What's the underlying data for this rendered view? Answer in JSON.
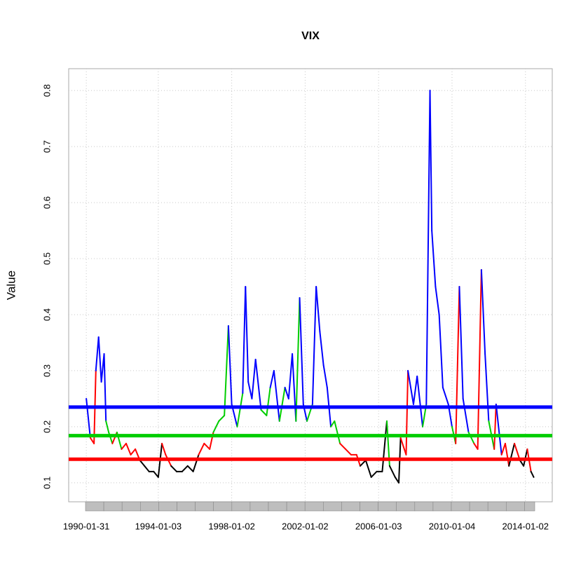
{
  "chart_data": {
    "type": "line",
    "title": "VIX",
    "ylabel": "Value",
    "xlim": [
      1989.12,
      2015.46
    ],
    "xticks": [
      {
        "value": 1990.08,
        "label": "1990-01-31"
      },
      {
        "value": 1994.0,
        "label": "1994-01-03"
      },
      {
        "value": 1998.0,
        "label": "1998-01-02"
      },
      {
        "value": 2002.0,
        "label": "2002-01-02"
      },
      {
        "value": 2006.0,
        "label": "2006-01-03"
      },
      {
        "value": 2010.0,
        "label": "2010-01-04"
      },
      {
        "value": 2014.0,
        "label": "2014-01-02"
      }
    ],
    "ylim": [
      0.066,
      0.839
    ],
    "yticks": [
      0.1,
      0.2,
      0.3,
      0.4,
      0.5,
      0.6,
      0.7,
      0.8
    ],
    "grid": true,
    "series": [
      {
        "x": [
          1990.08,
          1990.3,
          1990.5,
          1990.6,
          1990.75,
          1990.9,
          1991.05,
          1991.15,
          1991.3,
          1991.5,
          1991.75,
          1992.0,
          1992.25,
          1992.5,
          1992.75,
          1993.0,
          1993.25,
          1993.5,
          1993.75,
          1994.0,
          1994.2,
          1994.4,
          1994.7,
          1995.0,
          1995.3,
          1995.6,
          1995.9,
          1996.2,
          1996.5,
          1996.8,
          1997.0,
          1997.3,
          1997.6,
          1997.82,
          1998.0,
          1998.3,
          1998.6,
          1998.75,
          1998.9,
          1999.1,
          1999.3,
          1999.6,
          1999.9,
          2000.1,
          2000.3,
          2000.6,
          2000.9,
          2001.1,
          2001.3,
          2001.5,
          2001.7,
          2001.9,
          2002.1,
          2002.4,
          2002.6,
          2002.8,
          2003.0,
          2003.2,
          2003.4,
          2003.6,
          2003.9,
          2004.2,
          2004.5,
          2004.8,
          2005.0,
          2005.3,
          2005.6,
          2005.9,
          2006.2,
          2006.45,
          2006.6,
          2006.9,
          2007.1,
          2007.2,
          2007.5,
          2007.6,
          2007.9,
          2008.1,
          2008.4,
          2008.6,
          2008.8,
          2008.9,
          2009.1,
          2009.3,
          2009.5,
          2009.8,
          2010.0,
          2010.2,
          2010.4,
          2010.6,
          2010.9,
          2011.2,
          2011.4,
          2011.6,
          2011.8,
          2012.0,
          2012.3,
          2012.4,
          2012.7,
          2012.9,
          2013.1,
          2013.4,
          2013.7,
          2013.9,
          2014.1,
          2014.3,
          2014.45
        ],
        "values": [
          0.25,
          0.18,
          0.17,
          0.3,
          0.36,
          0.28,
          0.33,
          0.21,
          0.19,
          0.17,
          0.19,
          0.16,
          0.17,
          0.15,
          0.16,
          0.14,
          0.13,
          0.12,
          0.12,
          0.11,
          0.17,
          0.15,
          0.13,
          0.12,
          0.12,
          0.13,
          0.12,
          0.15,
          0.17,
          0.16,
          0.19,
          0.21,
          0.22,
          0.38,
          0.24,
          0.2,
          0.26,
          0.45,
          0.28,
          0.25,
          0.32,
          0.23,
          0.22,
          0.27,
          0.3,
          0.21,
          0.27,
          0.25,
          0.33,
          0.21,
          0.43,
          0.24,
          0.21,
          0.24,
          0.45,
          0.37,
          0.31,
          0.27,
          0.2,
          0.21,
          0.17,
          0.16,
          0.15,
          0.15,
          0.13,
          0.14,
          0.11,
          0.12,
          0.12,
          0.21,
          0.13,
          0.11,
          0.1,
          0.18,
          0.15,
          0.3,
          0.24,
          0.29,
          0.2,
          0.24,
          0.8,
          0.55,
          0.45,
          0.4,
          0.27,
          0.24,
          0.2,
          0.17,
          0.45,
          0.25,
          0.19,
          0.17,
          0.16,
          0.48,
          0.33,
          0.21,
          0.16,
          0.24,
          0.15,
          0.17,
          0.13,
          0.17,
          0.14,
          0.13,
          0.16,
          0.12,
          0.11
        ],
        "colors": [
          "#0000ff",
          "#ff0000",
          "#ff0000",
          "#0000ff",
          "#0000ff",
          "#0000ff",
          "#0000ff",
          "#00cd00",
          "#00cd00",
          "#ff0000",
          "#00cd00",
          "#ff0000",
          "#ff0000",
          "#ff0000",
          "#ff0000",
          "#000000",
          "#000000",
          "#000000",
          "#000000",
          "#000000",
          "#ff0000",
          "#ff0000",
          "#000000",
          "#000000",
          "#000000",
          "#000000",
          "#000000",
          "#ff0000",
          "#ff0000",
          "#ff0000",
          "#00cd00",
          "#00cd00",
          "#00cd00",
          "#0000ff",
          "#0000ff",
          "#00cd00",
          "#0000ff",
          "#0000ff",
          "#0000ff",
          "#0000ff",
          "#0000ff",
          "#00cd00",
          "#00cd00",
          "#0000ff",
          "#0000ff",
          "#00cd00",
          "#0000ff",
          "#0000ff",
          "#0000ff",
          "#00cd00",
          "#0000ff",
          "#0000ff",
          "#00cd00",
          "#0000ff",
          "#0000ff",
          "#0000ff",
          "#0000ff",
          "#0000ff",
          "#00cd00",
          "#00cd00",
          "#ff0000",
          "#ff0000",
          "#ff0000",
          "#ff0000",
          "#000000",
          "#000000",
          "#000000",
          "#000000",
          "#000000",
          "#00cd00",
          "#000000",
          "#000000",
          "#000000",
          "#ff0000",
          "#ff0000",
          "#0000ff",
          "#0000ff",
          "#0000ff",
          "#00cd00",
          "#0000ff",
          "#0000ff",
          "#0000ff",
          "#0000ff",
          "#0000ff",
          "#0000ff",
          "#0000ff",
          "#00cd00",
          "#ff0000",
          "#0000ff",
          "#0000ff",
          "#00cd00",
          "#ff0000",
          "#ff0000",
          "#0000ff",
          "#0000ff",
          "#00cd00",
          "#ff0000",
          "#0000ff",
          "#ff0000",
          "#ff0000",
          "#000000",
          "#ff0000",
          "#000000",
          "#000000",
          "#ff0000",
          "#000000",
          "#000000"
        ]
      }
    ],
    "hlines": [
      {
        "value": 0.142,
        "color": "#ff0000"
      },
      {
        "value": 0.184,
        "color": "#00cd00"
      },
      {
        "value": 0.235,
        "color": "#0000ff"
      }
    ]
  }
}
